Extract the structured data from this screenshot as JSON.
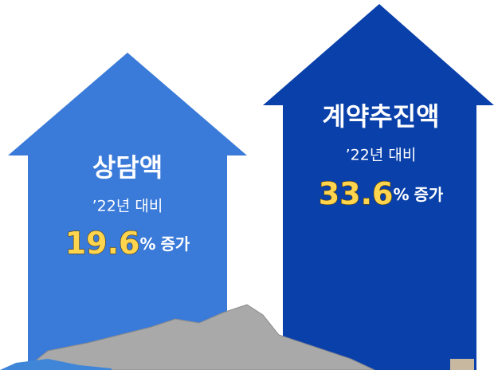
{
  "arrows": [
    {
      "title": "상담액",
      "subtitle": "’22년 대비",
      "value": 19.6,
      "unit": "%",
      "label": "증가"
    },
    {
      "title": "계약추진액",
      "subtitle": "’22년 대비",
      "value": 33.6,
      "unit": "%",
      "label": "증가"
    }
  ]
}
